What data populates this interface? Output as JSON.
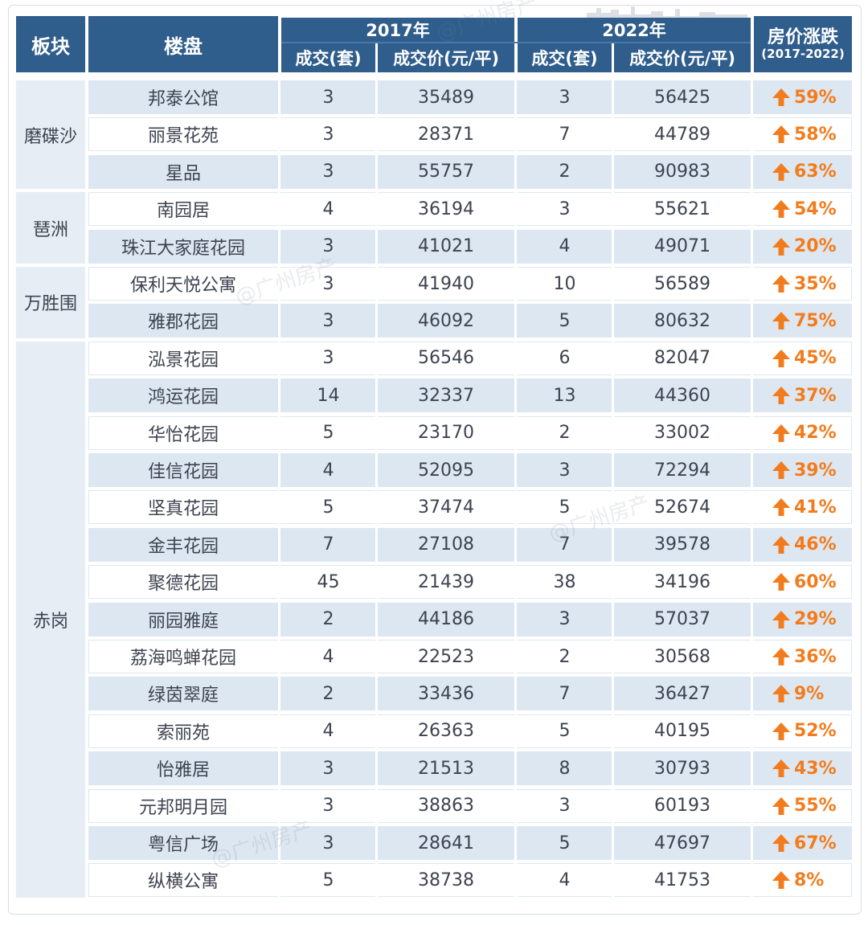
{
  "header": {
    "district": "板块",
    "estate": "楼盘",
    "year_a": "2017年",
    "year_b": "2022年",
    "deals": "成交(套)",
    "price": "成交价(元/平)",
    "change": "房价涨跌",
    "change_range": "(2017-2022)"
  },
  "watermark": "@广州房产",
  "districts": [
    {
      "name": "磨碟沙",
      "rows": 3
    },
    {
      "name": "琶洲",
      "rows": 2
    },
    {
      "name": "万胜围",
      "rows": 2
    },
    {
      "name": "赤岗",
      "rows": 15
    }
  ],
  "rows": [
    {
      "estate": "邦泰公馆",
      "deals_2017": "3",
      "price_2017": "35489",
      "deals_2022": "3",
      "price_2022": "56425",
      "change": "59%"
    },
    {
      "estate": "丽景花苑",
      "deals_2017": "3",
      "price_2017": "28371",
      "deals_2022": "7",
      "price_2022": "44789",
      "change": "58%"
    },
    {
      "estate": "星品",
      "deals_2017": "3",
      "price_2017": "55757",
      "deals_2022": "2",
      "price_2022": "90983",
      "change": "63%"
    },
    {
      "estate": "南园居",
      "deals_2017": "4",
      "price_2017": "36194",
      "deals_2022": "3",
      "price_2022": "55621",
      "change": "54%"
    },
    {
      "estate": "珠江大家庭花园",
      "deals_2017": "3",
      "price_2017": "41021",
      "deals_2022": "4",
      "price_2022": "49071",
      "change": "20%"
    },
    {
      "estate": "保利天悦公寓",
      "deals_2017": "3",
      "price_2017": "41940",
      "deals_2022": "10",
      "price_2022": "56589",
      "change": "35%"
    },
    {
      "estate": "雅郡花园",
      "deals_2017": "3",
      "price_2017": "46092",
      "deals_2022": "5",
      "price_2022": "80632",
      "change": "75%"
    },
    {
      "estate": "泓景花园",
      "deals_2017": "3",
      "price_2017": "56546",
      "deals_2022": "6",
      "price_2022": "82047",
      "change": "45%"
    },
    {
      "estate": "鸿运花园",
      "deals_2017": "14",
      "price_2017": "32337",
      "deals_2022": "13",
      "price_2022": "44360",
      "change": "37%"
    },
    {
      "estate": "华怡花园",
      "deals_2017": "5",
      "price_2017": "23170",
      "deals_2022": "2",
      "price_2022": "33002",
      "change": "42%"
    },
    {
      "estate": "佳信花园",
      "deals_2017": "4",
      "price_2017": "52095",
      "deals_2022": "3",
      "price_2022": "72294",
      "change": "39%"
    },
    {
      "estate": "坚真花园",
      "deals_2017": "5",
      "price_2017": "37474",
      "deals_2022": "5",
      "price_2022": "52674",
      "change": "41%"
    },
    {
      "estate": "金丰花园",
      "deals_2017": "7",
      "price_2017": "27108",
      "deals_2022": "7",
      "price_2022": "39578",
      "change": "46%"
    },
    {
      "estate": "聚德花园",
      "deals_2017": "45",
      "price_2017": "21439",
      "deals_2022": "38",
      "price_2022": "34196",
      "change": "60%"
    },
    {
      "estate": "丽园雅庭",
      "deals_2017": "2",
      "price_2017": "44186",
      "deals_2022": "3",
      "price_2022": "57037",
      "change": "29%"
    },
    {
      "estate": "荔海鸣蝉花园",
      "deals_2017": "4",
      "price_2017": "22523",
      "deals_2022": "2",
      "price_2022": "30568",
      "change": "36%"
    },
    {
      "estate": "绿茵翠庭",
      "deals_2017": "2",
      "price_2017": "33436",
      "deals_2022": "7",
      "price_2022": "36427",
      "change": "9%"
    },
    {
      "estate": "索丽苑",
      "deals_2017": "4",
      "price_2017": "26363",
      "deals_2022": "5",
      "price_2022": "40195",
      "change": "52%"
    },
    {
      "estate": "怡雅居",
      "deals_2017": "3",
      "price_2017": "21513",
      "deals_2022": "8",
      "price_2022": "30793",
      "change": "43%"
    },
    {
      "estate": "元邦明月园",
      "deals_2017": "3",
      "price_2017": "38863",
      "deals_2022": "3",
      "price_2022": "60193",
      "change": "55%"
    },
    {
      "estate": "粤信广场",
      "deals_2017": "3",
      "price_2017": "28641",
      "deals_2022": "5",
      "price_2022": "47697",
      "change": "67%"
    },
    {
      "estate": "纵横公寓",
      "deals_2017": "5",
      "price_2017": "38738",
      "deals_2022": "4",
      "price_2022": "41753",
      "change": "8%"
    }
  ],
  "colors": {
    "header": "#2f5d8c",
    "odd_row": "#dde7f1",
    "up_arrow": "#f27c1d"
  },
  "icons": {
    "change": "up-arrow-icon"
  }
}
